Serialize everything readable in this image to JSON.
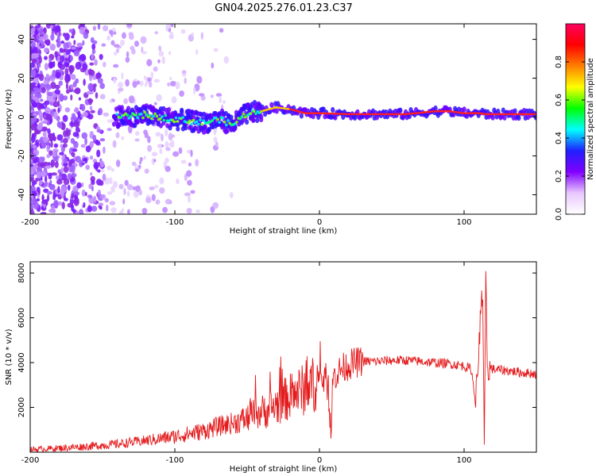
{
  "chart_data": [
    {
      "type": "heatmap",
      "title": "GN04.2025.276.01.23.C37",
      "xlabel": "Height of straight line (km)",
      "ylabel": "Frequency (Hz)",
      "xlim": [
        -200,
        150
      ],
      "ylim": [
        -50,
        48
      ],
      "xticks": [
        "-200",
        "-100",
        "0",
        "100"
      ],
      "yticks": [
        "-40",
        "-20",
        "0",
        "20",
        "40"
      ],
      "colorbar": {
        "label": "Normalized spectral amplitude",
        "range": [
          0,
          1
        ],
        "ticks": [
          "0.0",
          "0.2",
          "0.4",
          "0.6",
          "0.8"
        ],
        "colors": [
          "#ffffff",
          "#e8c8ff",
          "#8000ff",
          "#2020ff",
          "#00ffff",
          "#00ff00",
          "#ffff00",
          "#ff8000",
          "#ff0000",
          "#ff0060"
        ]
      },
      "ridge": {
        "x": [
          -140,
          -120,
          -100,
          -90,
          -80,
          -70,
          -60,
          -50,
          -40,
          -30,
          -20,
          -10,
          0,
          20,
          40,
          60,
          80,
          90,
          100,
          110,
          115,
          130,
          150
        ],
        "y": [
          0,
          1,
          -1,
          -2,
          -3,
          -1,
          -4,
          2,
          3,
          5,
          4,
          2,
          2,
          1.5,
          1.5,
          1.5,
          3,
          3,
          2,
          2,
          1.5,
          1.5,
          1.5
        ]
      }
    },
    {
      "type": "line",
      "xlabel": "Height of straight line (km)",
      "ylabel": "SNR (10 * v/v)",
      "xlim": [
        -200,
        150
      ],
      "ylim": [
        0,
        8500
      ],
      "xticks": [
        "-200",
        "-100",
        "0",
        "100"
      ],
      "yticks": [
        "2000",
        "4000",
        "6000",
        "8000"
      ],
      "color": "#e41a1c",
      "x": [
        -200,
        -180,
        -160,
        -140,
        -120,
        -100,
        -80,
        -70,
        -60,
        -50,
        -45,
        -40,
        -35,
        -30,
        -25,
        -20,
        -15,
        -10,
        -5,
        0,
        5,
        8,
        10,
        15,
        20,
        25,
        30,
        40,
        50,
        60,
        70,
        80,
        90,
        100,
        105,
        108,
        110,
        112,
        113,
        114,
        115,
        116,
        118,
        120,
        130,
        140,
        150
      ],
      "values": [
        120,
        180,
        260,
        360,
        520,
        700,
        950,
        1150,
        1300,
        1500,
        1700,
        1800,
        1900,
        2100,
        2300,
        2500,
        2700,
        2800,
        3000,
        3200,
        3300,
        1200,
        3400,
        3700,
        3900,
        4000,
        4050,
        4050,
        4100,
        4100,
        4050,
        4000,
        3950,
        3850,
        3700,
        2200,
        4300,
        7000,
        6200,
        300,
        8300,
        3200,
        3800,
        3700,
        3650,
        3550,
        3500
      ]
    }
  ]
}
